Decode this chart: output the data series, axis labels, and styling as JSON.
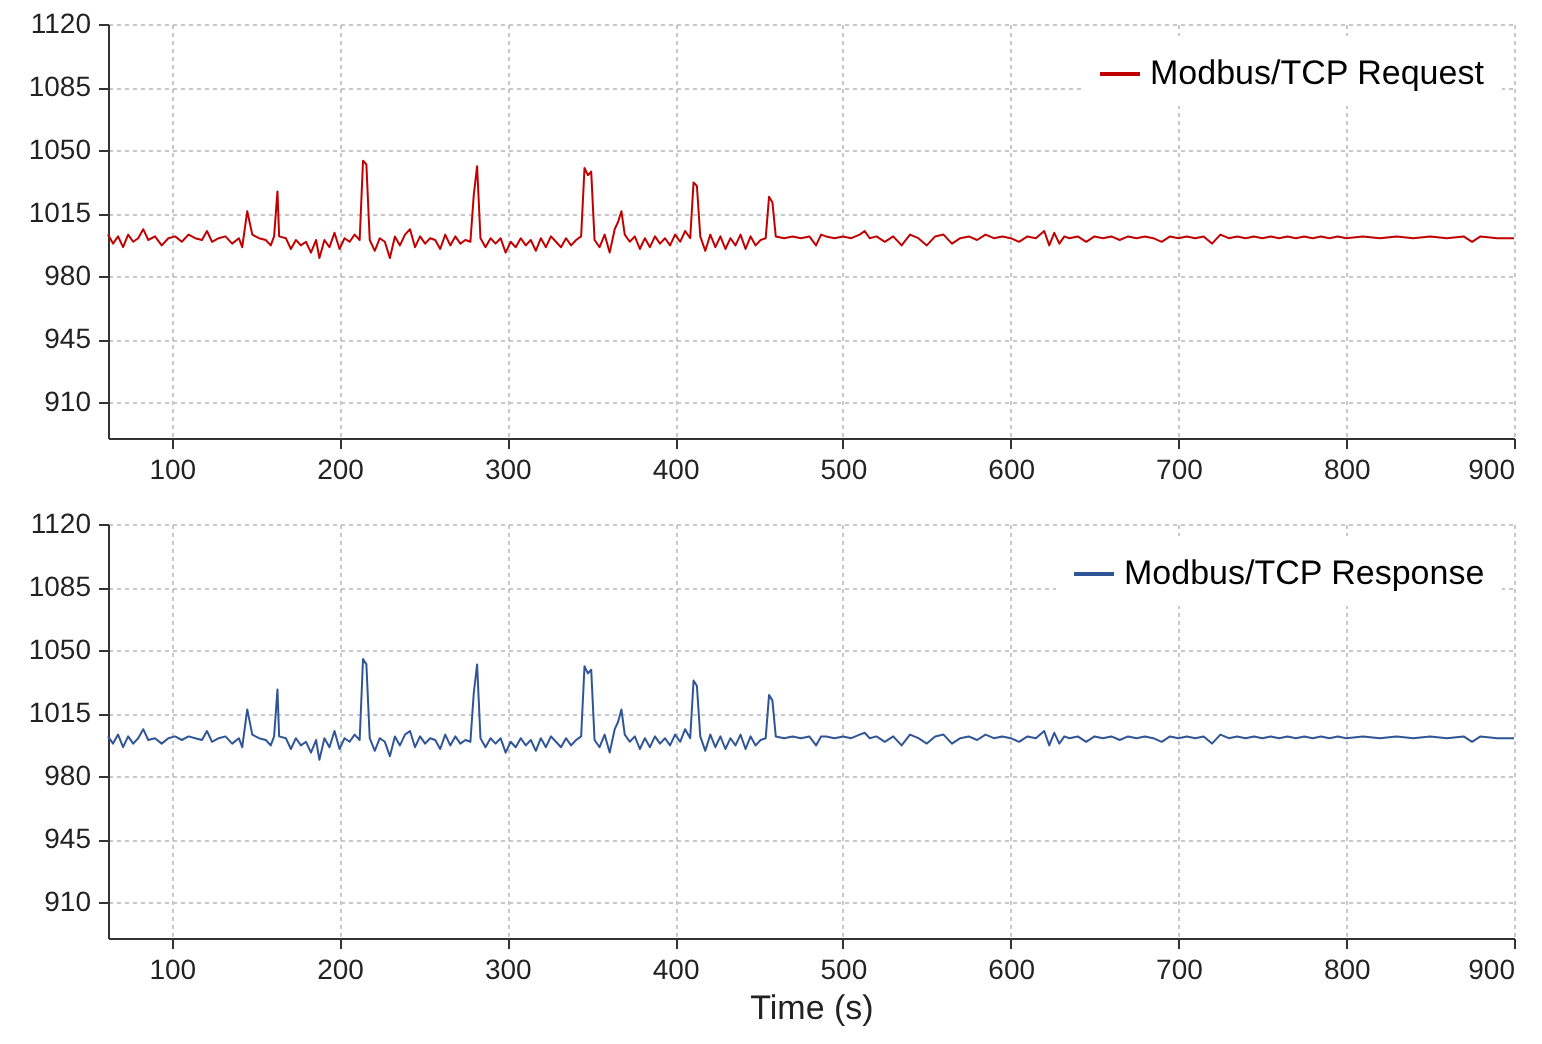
{
  "chart_data": [
    {
      "type": "line",
      "xlim": [
        62,
        900
      ],
      "xticks": [
        100,
        200,
        300,
        400,
        500,
        600,
        700,
        800,
        900
      ],
      "ylim": [
        890,
        1120
      ],
      "yticks": [
        910,
        945,
        980,
        1015,
        1050,
        1085,
        1120
      ],
      "grid": true,
      "legend": "top right",
      "series": [
        {
          "name": "Modbus/TCP Request",
          "color": "#c00000",
          "x": [
            62,
            65,
            68,
            71,
            74,
            77,
            80,
            83,
            86,
            90,
            94,
            98,
            102,
            106,
            110,
            114,
            118,
            121,
            124,
            128,
            132,
            136,
            140,
            142,
            145,
            148,
            152,
            156,
            159,
            161,
            163,
            164,
            168,
            171,
            174,
            177,
            180,
            183,
            186,
            188,
            191,
            194,
            197,
            200,
            203,
            206,
            209,
            212,
            214,
            216,
            218,
            221,
            224,
            227,
            230,
            233,
            236,
            239,
            242,
            245,
            248,
            251,
            254,
            257,
            260,
            263,
            266,
            269,
            272,
            275,
            278,
            280,
            282,
            284,
            287,
            290,
            293,
            296,
            299,
            302,
            305,
            308,
            311,
            314,
            317,
            320,
            323,
            326,
            329,
            332,
            335,
            338,
            341,
            344,
            346,
            348,
            350,
            352,
            355,
            358,
            361,
            364,
            366,
            368,
            370,
            373,
            376,
            379,
            382,
            385,
            388,
            391,
            394,
            397,
            400,
            403,
            406,
            409,
            411,
            413,
            415,
            418,
            421,
            424,
            427,
            430,
            433,
            436,
            439,
            442,
            445,
            448,
            451,
            454,
            456,
            458,
            460,
            465,
            470,
            475,
            480,
            484,
            487,
            490,
            495,
            500,
            505,
            510,
            513,
            516,
            520,
            525,
            530,
            535,
            540,
            545,
            550,
            555,
            560,
            565,
            570,
            575,
            580,
            585,
            590,
            595,
            600,
            605,
            610,
            615,
            620,
            623,
            626,
            629,
            632,
            635,
            640,
            645,
            650,
            655,
            660,
            665,
            670,
            675,
            680,
            685,
            690,
            695,
            700,
            705,
            710,
            715,
            720,
            725,
            730,
            735,
            740,
            745,
            750,
            755,
            760,
            765,
            770,
            775,
            780,
            785,
            790,
            795,
            800,
            810,
            820,
            830,
            840,
            850,
            860,
            870,
            875,
            880,
            890,
            900
          ],
          "values": [
            1003,
            998,
            1002,
            996,
            1003,
            999,
            1001,
            1006,
            1000,
            1002,
            997,
            1001,
            1002,
            999,
            1003,
            1001,
            1000,
            1005,
            999,
            1001,
            1002,
            998,
            1001,
            996,
            1016,
            1003,
            1001,
            1000,
            997,
            1002,
            1027,
            1002,
            1001,
            995,
            1000,
            997,
            999,
            993,
            1000,
            990,
            1000,
            996,
            1004,
            995,
            1001,
            999,
            1003,
            1000,
            1044,
            1042,
            1000,
            994,
            1001,
            999,
            990,
            1002,
            997,
            1003,
            1006,
            996,
            1002,
            998,
            1001,
            1000,
            995,
            1003,
            997,
            1002,
            998,
            1000,
            999,
            1025,
            1041,
            1001,
            996,
            1001,
            998,
            1001,
            993,
            999,
            996,
            1001,
            997,
            1000,
            994,
            1001,
            996,
            1002,
            999,
            996,
            1001,
            997,
            1000,
            1002,
            1040,
            1036,
            1038,
            1000,
            996,
            1003,
            993,
            1006,
            1010,
            1016,
            1003,
            999,
            1002,
            995,
            1001,
            996,
            1002,
            998,
            1001,
            997,
            1003,
            999,
            1005,
            1001,
            1032,
            1030,
            1002,
            994,
            1003,
            996,
            1002,
            995,
            1001,
            997,
            1003,
            995,
            1002,
            997,
            1000,
            1001,
            1024,
            1021,
            1002,
            1001,
            1002,
            1001,
            1002,
            997,
            1003,
            1002,
            1001,
            1002,
            1001,
            1003,
            1005,
            1001,
            1002,
            999,
            1002,
            997,
            1003,
            1001,
            997,
            1002,
            1003,
            998,
            1001,
            1002,
            1000,
            1003,
            1001,
            1002,
            1001,
            999,
            1002,
            1001,
            1005,
            997,
            1004,
            998,
            1002,
            1001,
            1002,
            999,
            1002,
            1001,
            1002,
            1000,
            1002,
            1001,
            1002,
            1001,
            999,
            1002,
            1001,
            1002,
            1001,
            1002,
            998,
            1003,
            1001,
            1002,
            1001,
            1002,
            1001,
            1002,
            1001,
            1002,
            1001,
            1002,
            1001,
            1002,
            1001,
            1002,
            1001,
            1002,
            1001,
            1002,
            1001,
            1002,
            1001,
            1002,
            999,
            1002,
            1001,
            1001
          ]
        }
      ]
    },
    {
      "type": "line",
      "xlabel": "Time (s)",
      "xlim": [
        62,
        900
      ],
      "xticks": [
        100,
        200,
        300,
        400,
        500,
        600,
        700,
        800,
        900
      ],
      "ylim": [
        890,
        1120
      ],
      "yticks": [
        910,
        945,
        980,
        1015,
        1050,
        1085,
        1120
      ],
      "grid": true,
      "legend": "top right",
      "series": [
        {
          "name": "Modbus/TCP Response",
          "color": "#2f5597",
          "x": [
            62,
            65,
            68,
            71,
            74,
            77,
            80,
            83,
            86,
            90,
            94,
            98,
            102,
            106,
            110,
            114,
            118,
            121,
            124,
            128,
            132,
            136,
            140,
            142,
            145,
            148,
            152,
            156,
            159,
            161,
            163,
            164,
            168,
            171,
            174,
            177,
            180,
            183,
            186,
            188,
            191,
            194,
            197,
            200,
            203,
            206,
            209,
            212,
            214,
            216,
            218,
            221,
            224,
            227,
            230,
            233,
            236,
            239,
            242,
            245,
            248,
            251,
            254,
            257,
            260,
            263,
            266,
            269,
            272,
            275,
            278,
            280,
            282,
            284,
            287,
            290,
            293,
            296,
            299,
            302,
            305,
            308,
            311,
            314,
            317,
            320,
            323,
            326,
            329,
            332,
            335,
            338,
            341,
            344,
            346,
            348,
            350,
            352,
            355,
            358,
            361,
            364,
            366,
            368,
            370,
            373,
            376,
            379,
            382,
            385,
            388,
            391,
            394,
            397,
            400,
            403,
            406,
            409,
            411,
            413,
            415,
            418,
            421,
            424,
            427,
            430,
            433,
            436,
            439,
            442,
            445,
            448,
            451,
            454,
            456,
            458,
            460,
            465,
            470,
            475,
            480,
            484,
            487,
            490,
            495,
            500,
            505,
            510,
            513,
            516,
            520,
            525,
            530,
            535,
            540,
            545,
            550,
            555,
            560,
            565,
            570,
            575,
            580,
            585,
            590,
            595,
            600,
            605,
            610,
            615,
            620,
            623,
            626,
            629,
            632,
            635,
            640,
            645,
            650,
            655,
            660,
            665,
            670,
            675,
            680,
            685,
            690,
            695,
            700,
            705,
            710,
            715,
            720,
            725,
            730,
            735,
            740,
            745,
            750,
            755,
            760,
            765,
            770,
            775,
            780,
            785,
            790,
            795,
            800,
            810,
            820,
            830,
            840,
            850,
            860,
            870,
            875,
            880,
            890,
            900
          ],
          "values": [
            1002,
            998,
            1003,
            996,
            1002,
            998,
            1001,
            1006,
            1000,
            1001,
            998,
            1001,
            1002,
            1000,
            1002,
            1001,
            1000,
            1005,
            999,
            1001,
            1002,
            998,
            1001,
            996,
            1017,
            1003,
            1001,
            1000,
            997,
            1002,
            1028,
            1002,
            1001,
            995,
            1001,
            997,
            999,
            993,
            1000,
            989,
            1001,
            996,
            1005,
            995,
            1001,
            999,
            1003,
            1000,
            1045,
            1042,
            1001,
            994,
            1001,
            999,
            991,
            1002,
            997,
            1003,
            1005,
            996,
            1002,
            998,
            1001,
            1000,
            995,
            1003,
            997,
            1002,
            998,
            1000,
            999,
            1026,
            1042,
            1001,
            996,
            1001,
            998,
            1001,
            993,
            999,
            996,
            1001,
            997,
            1000,
            994,
            1001,
            996,
            1002,
            999,
            996,
            1001,
            997,
            1000,
            1002,
            1041,
            1037,
            1039,
            1000,
            996,
            1003,
            993,
            1006,
            1010,
            1017,
            1003,
            999,
            1002,
            995,
            1001,
            996,
            1002,
            998,
            1001,
            997,
            1003,
            999,
            1006,
            1001,
            1033,
            1030,
            1002,
            994,
            1003,
            996,
            1002,
            995,
            1001,
            997,
            1003,
            995,
            1002,
            997,
            1000,
            1001,
            1025,
            1022,
            1002,
            1001,
            1002,
            1001,
            1002,
            997,
            1002,
            1002,
            1001,
            1002,
            1001,
            1003,
            1004,
            1001,
            1002,
            999,
            1002,
            997,
            1003,
            1001,
            998,
            1002,
            1003,
            998,
            1001,
            1002,
            1000,
            1003,
            1001,
            1002,
            1001,
            999,
            1002,
            1001,
            1005,
            997,
            1004,
            998,
            1002,
            1001,
            1002,
            999,
            1002,
            1001,
            1002,
            1000,
            1002,
            1001,
            1002,
            1001,
            999,
            1002,
            1001,
            1002,
            1001,
            1002,
            998,
            1003,
            1001,
            1002,
            1001,
            1002,
            1001,
            1002,
            1001,
            1002,
            1001,
            1002,
            1001,
            1002,
            1001,
            1002,
            1001,
            1002,
            1001,
            1002,
            1001,
            1002,
            1001,
            1002,
            999,
            1002,
            1001,
            1001
          ]
        }
      ]
    }
  ]
}
